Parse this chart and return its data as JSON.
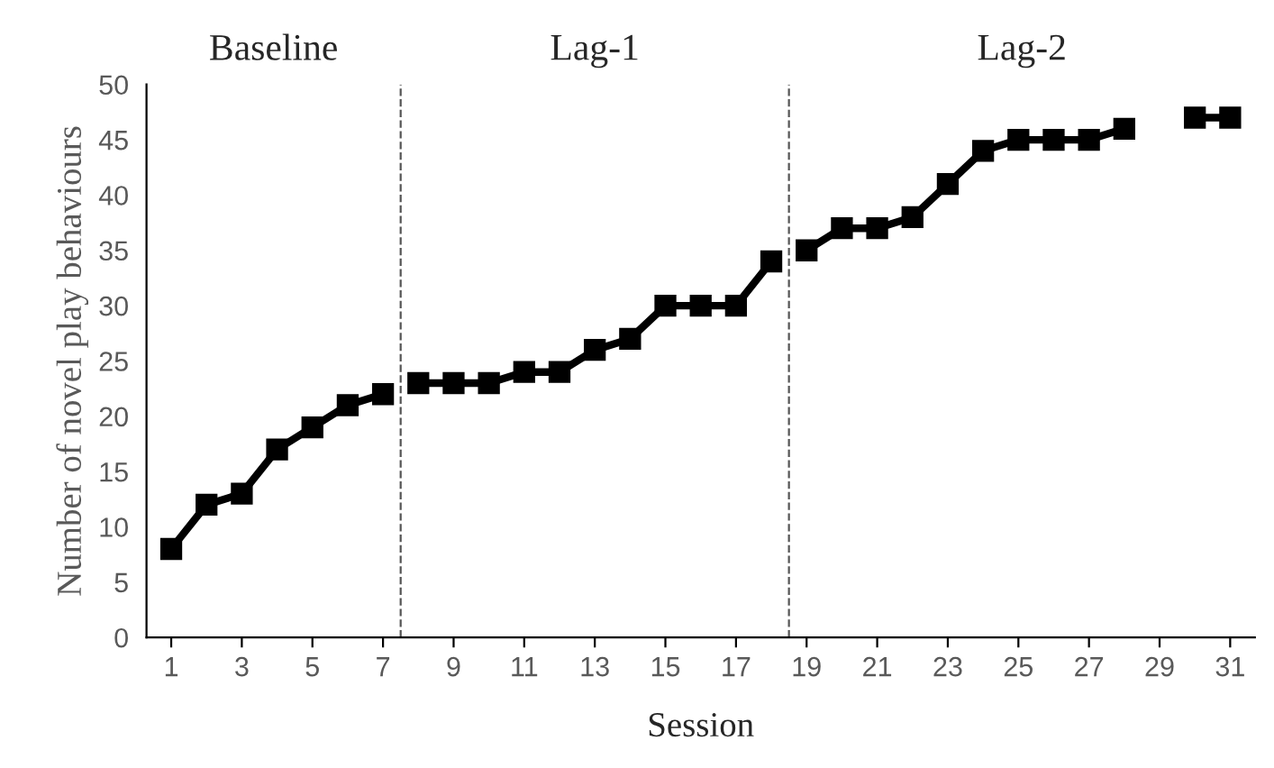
{
  "chart_data": {
    "type": "line",
    "xlabel": "Session",
    "ylabel": "Number of novel play behaviours",
    "series": [
      {
        "color": "#000000",
        "x": [
          1,
          2,
          3,
          4,
          5,
          6,
          7
        ],
        "values": [
          8,
          12,
          13,
          17,
          19,
          21,
          22
        ]
      },
      {
        "color": "#000000",
        "x": [
          8,
          9,
          10,
          11,
          12,
          13,
          14,
          15,
          16,
          17,
          18
        ],
        "values": [
          23,
          23,
          23,
          24,
          24,
          26,
          27,
          30,
          30,
          30,
          34
        ]
      },
      {
        "color": "#000000",
        "x": [
          19,
          20,
          21,
          22,
          23,
          24,
          25,
          26,
          27,
          28
        ],
        "values": [
          35,
          37,
          37,
          38,
          41,
          44,
          45,
          45,
          45,
          46
        ]
      },
      {
        "color": "#000000",
        "x": [
          30,
          31
        ],
        "values": [
          47,
          47
        ]
      }
    ],
    "xlim": [
      0.3,
      31.7
    ],
    "xticks": [
      1,
      3,
      5,
      7,
      9,
      11,
      13,
      15,
      17,
      19,
      21,
      23,
      25,
      27,
      29,
      31
    ],
    "ylim": [
      0,
      50
    ],
    "yticks": [
      0,
      5,
      10,
      15,
      20,
      25,
      30,
      35,
      40,
      45,
      50
    ],
    "ref_lines": [
      {
        "axis": "x",
        "value": 7.5,
        "line_style": "dashed",
        "color": "#555555"
      },
      {
        "axis": "x",
        "value": 18.5,
        "line_style": "dashed",
        "color": "#555555"
      }
    ],
    "annotations": [
      "Baseline",
      "Lag-1",
      "Lag-2"
    ],
    "marker": "square",
    "line_style": "solid",
    "grid": false,
    "legend": false
  }
}
